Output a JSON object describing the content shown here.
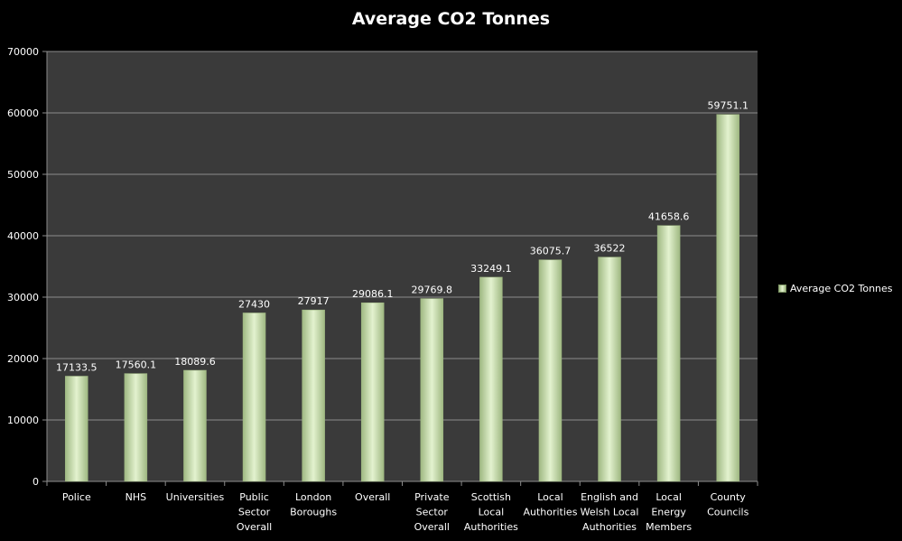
{
  "chart_data": {
    "type": "bar",
    "title": "Average CO2 Tonnes",
    "xlabel": "",
    "ylabel": "",
    "ylim": [
      0,
      70000
    ],
    "yticks": [
      0,
      10000,
      20000,
      30000,
      40000,
      50000,
      60000,
      70000
    ],
    "grid": true,
    "legend_position": "right",
    "categories": [
      "Police",
      "NHS",
      "Universities",
      "Public Sector Overall",
      "London Boroughs",
      "Overall",
      "Private Sector Overall",
      "Scottish Local Authorities",
      "Local Authorities",
      "English and Welsh Local Authorities",
      "Local Energy Members",
      "County Councils"
    ],
    "category_lines": [
      [
        "Police"
      ],
      [
        "NHS"
      ],
      [
        "Universities"
      ],
      [
        "Public",
        "Sector",
        "Overall"
      ],
      [
        "London",
        "Boroughs"
      ],
      [
        "Overall"
      ],
      [
        "Private",
        "Sector",
        "Overall"
      ],
      [
        "Scottish",
        "Local",
        "Authorities"
      ],
      [
        "Local",
        "Authorities"
      ],
      [
        "English and",
        "Welsh Local",
        "Authorities"
      ],
      [
        "Local",
        "Energy",
        "Members"
      ],
      [
        "County",
        "Councils"
      ]
    ],
    "series": [
      {
        "name": "Average CO2 Tonnes",
        "values": [
          17133.5,
          17560.1,
          18089.6,
          27430,
          27917,
          29086.1,
          29769.8,
          33249.1,
          36075.7,
          36522,
          41658.6,
          59751.1
        ],
        "labels": [
          "17133.5",
          "17560.1",
          "18089.6",
          "27430",
          "27917",
          "29086.1",
          "29769.8",
          "33249.1",
          "36075.7",
          "36522",
          "41658.6",
          "59751.1"
        ]
      }
    ]
  },
  "colors": {
    "background": "#000000",
    "plot_area": "#3a3a3a",
    "gridline": "#8c8c8c",
    "bar_edge": "#9fb882",
    "bar_center": "#e3f2cf",
    "text": "#ffffff"
  }
}
